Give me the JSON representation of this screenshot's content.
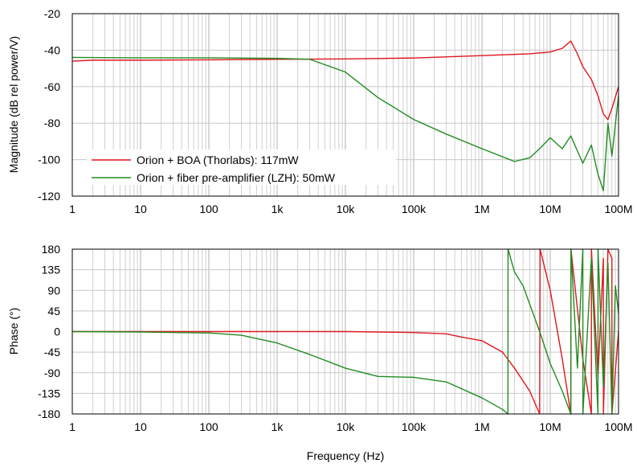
{
  "colors": {
    "red": "#e0161e",
    "green": "#228b22"
  },
  "chart_data": [
    {
      "type": "line",
      "title": "",
      "xlabel": "",
      "ylabel": "Magnitude (dB rel power/V)",
      "xscale": "log",
      "xlim": [
        1,
        100000000
      ],
      "ylim": [
        -120,
        -20
      ],
      "x_tick_labels": [
        "1",
        "10",
        "100",
        "1k",
        "10k",
        "100k",
        "1M",
        "10M",
        "100M"
      ],
      "y_tick_labels": [
        "-20",
        "-40",
        "-60",
        "-80",
        "-100",
        "-120"
      ],
      "grid": true,
      "legend": "bottom-left",
      "series": [
        {
          "name": "Orion + BOA (Thorlabs): 117mW",
          "color": "red",
          "x": [
            1,
            2,
            10,
            100,
            1000,
            10000,
            100000,
            1000000,
            5000000,
            10000000,
            15000000,
            20000000,
            25000000,
            30000000,
            40000000,
            50000000,
            60000000,
            70000000,
            80000000,
            100000000
          ],
          "y": [
            -46,
            -45.5,
            -45.5,
            -45.3,
            -45,
            -44.8,
            -44.3,
            -43,
            -42,
            -41,
            -39,
            -35,
            -42,
            -49,
            -56,
            -65,
            -75,
            -78,
            -72,
            -60
          ]
        },
        {
          "name": "Orion + fiber pre-amplifier (LZH): 50mW",
          "color": "green",
          "x": [
            1,
            10,
            100,
            1000,
            3000,
            10000,
            30000,
            100000,
            300000,
            1000000,
            3000000,
            5000000,
            7000000,
            10000000,
            15000000,
            20000000,
            30000000,
            40000000,
            50000000,
            60000000,
            70000000,
            80000000,
            100000000
          ],
          "y": [
            -44,
            -44.2,
            -44.2,
            -44.5,
            -45,
            -52,
            -66,
            -78,
            -86,
            -94,
            -101,
            -99,
            -94,
            -88,
            -94,
            -87,
            -102,
            -92,
            -108,
            -117,
            -80,
            -98,
            -65
          ]
        }
      ]
    },
    {
      "type": "line",
      "title": "",
      "xlabel": "Frequency (Hz)",
      "ylabel": "Phase (°)",
      "xscale": "log",
      "xlim": [
        1,
        100000000
      ],
      "ylim": [
        -180,
        180
      ],
      "x_tick_labels": [
        "1",
        "10",
        "100",
        "1k",
        "10k",
        "100k",
        "1M",
        "10M",
        "100M"
      ],
      "y_tick_labels": [
        "180",
        "135",
        "90",
        "45",
        "0",
        "-45",
        "-90",
        "-135",
        "-180"
      ],
      "grid": true,
      "series": [
        {
          "name": "Orion + BOA (Thorlabs): 117mW",
          "color": "red",
          "x": [
            1,
            10,
            100,
            1000,
            10000,
            100000,
            300000,
            500000,
            1000000,
            2000000,
            3000000,
            5000000,
            7000000,
            7100000,
            10000000,
            15000000,
            20000000,
            20100000,
            30000000,
            40000000,
            40100000,
            50000000,
            60000000,
            60100000,
            70000000,
            80000000,
            80100000,
            100000000
          ],
          "y": [
            0,
            0,
            0,
            0,
            0,
            -2,
            -5,
            -12,
            -20,
            -45,
            -80,
            -130,
            -180,
            180,
            90,
            -60,
            -180,
            180,
            -60,
            -180,
            180,
            -100,
            160,
            -180,
            180,
            160,
            -180,
            0
          ]
        },
        {
          "name": "Orion + fiber pre-amplifier (LZH): 50mW",
          "color": "green",
          "x": [
            1,
            10,
            100,
            300,
            1000,
            3000,
            10000,
            30000,
            100000,
            300000,
            1000000,
            2000000,
            2400000,
            2410000,
            3000000,
            4000000,
            5000000,
            7000000,
            10000000,
            15000000,
            20000000,
            20100000,
            25000000,
            30000000,
            30100000,
            40000000,
            50000000,
            50100000,
            60000000,
            70000000,
            80000000,
            90000000,
            100000000
          ],
          "y": [
            0,
            -1,
            -3,
            -8,
            -25,
            -50,
            -80,
            -98,
            -100,
            -110,
            -145,
            -170,
            -180,
            180,
            130,
            100,
            60,
            0,
            -70,
            -130,
            -180,
            180,
            -80,
            180,
            -180,
            160,
            -180,
            180,
            -120,
            150,
            -180,
            100,
            40
          ]
        }
      ]
    }
  ]
}
